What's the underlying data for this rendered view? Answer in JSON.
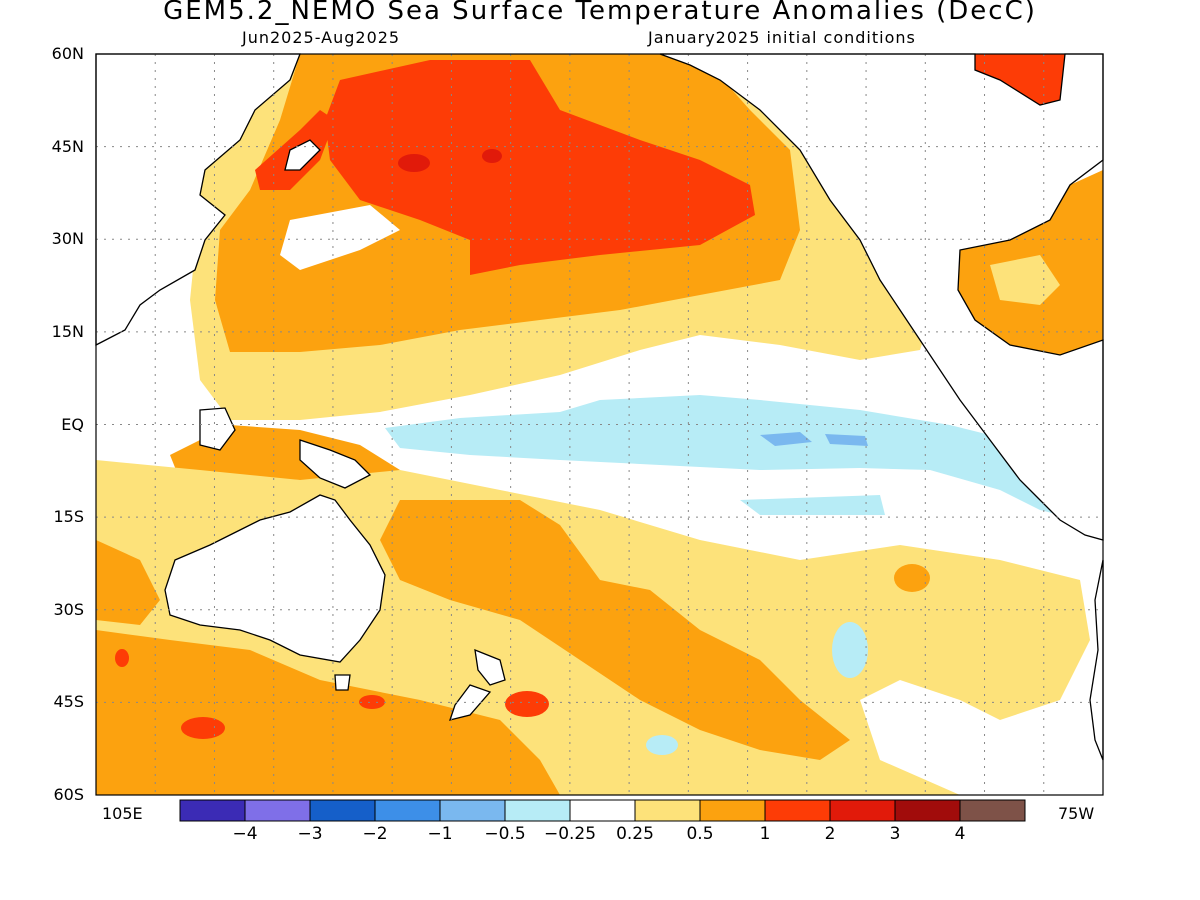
{
  "header": {
    "title": "GEM5.2_NEMO Sea Surface Temperature Anomalies (DecC)",
    "period": "Jun2025-Aug2025",
    "init": "January2025 initial conditions"
  },
  "axes": {
    "lat_labels": [
      "60N",
      "45N",
      "30N",
      "15N",
      "EQ",
      "15S",
      "30S",
      "45S",
      "60S"
    ],
    "lon_left": "105E",
    "lon_right": "75W"
  },
  "colorbar": {
    "colors": [
      "#3b2bb5",
      "#7f6fe8",
      "#155fc9",
      "#3d8fe8",
      "#7ab8ef",
      "#b7ecf6",
      "#ffffff",
      "#fde27a",
      "#fca20f",
      "#fd3c06",
      "#e11a0a",
      "#a10c0b",
      "#7e5248"
    ],
    "labels": [
      "−4",
      "−3",
      "−2",
      "−1",
      "−0.5",
      "−0.25",
      "0.25",
      "0.5",
      "1",
      "2",
      "3",
      "4"
    ]
  }
}
